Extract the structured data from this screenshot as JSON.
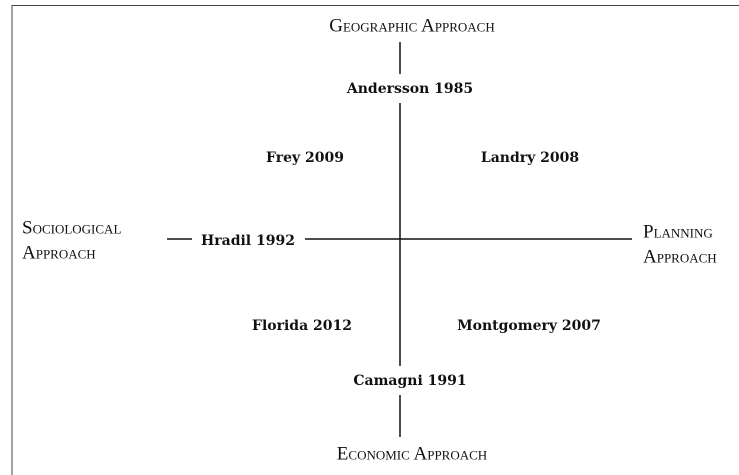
{
  "axes": {
    "top": "Geographic Approach",
    "bottom": "Economic Approach",
    "left": [
      "Sociological",
      "Approach"
    ],
    "right": [
      "Planning",
      "Approach"
    ]
  },
  "authors": [
    "Andersson 1985",
    "Frey 2009",
    "Landry 2008",
    "Hradil 1992",
    "Florida 2012",
    "Montgomery 2007",
    "Camagni 1991"
  ]
}
